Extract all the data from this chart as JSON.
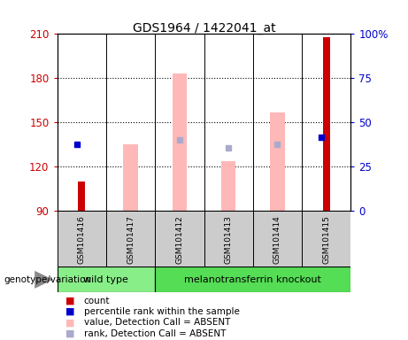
{
  "title": "GDS1964 / 1422041_at",
  "samples": [
    "GSM101416",
    "GSM101417",
    "GSM101412",
    "GSM101413",
    "GSM101414",
    "GSM101415"
  ],
  "ylim_left": [
    90,
    210
  ],
  "ylim_right": [
    0,
    100
  ],
  "yticks_left": [
    90,
    120,
    150,
    180,
    210
  ],
  "yticks_right": [
    0,
    25,
    50,
    75,
    100
  ],
  "ytick_labels_right": [
    "0",
    "25",
    "50",
    "75",
    "100%"
  ],
  "red_bars": {
    "GSM101416": 110,
    "GSM101415": 208
  },
  "blue_squares": {
    "GSM101416": 135,
    "GSM101415": 140
  },
  "pink_bars": {
    "GSM101417": 135,
    "GSM101412": 183,
    "GSM101413": 124,
    "GSM101414": 157
  },
  "lightblue_squares": {
    "GSM101412": 138,
    "GSM101413": 133,
    "GSM101414": 135
  },
  "wild_type": [
    "GSM101416",
    "GSM101417"
  ],
  "knockout": [
    "GSM101412",
    "GSM101413",
    "GSM101414",
    "GSM101415"
  ],
  "wild_type_label": "wild type",
  "knockout_label": "melanotransferrin knockout",
  "genotype_label": "genotype/variation",
  "legend_items": [
    {
      "label": "count",
      "color": "#cc0000"
    },
    {
      "label": "percentile rank within the sample",
      "color": "#0000cc"
    },
    {
      "label": "value, Detection Call = ABSENT",
      "color": "#ffb8b8"
    },
    {
      "label": "rank, Detection Call = ABSENT",
      "color": "#aaaacc"
    }
  ],
  "left_yaxis_color": "#cc0000",
  "right_yaxis_color": "#0000cc",
  "bar_bottom": 90,
  "pink_bar_color": "#ffb8b8",
  "red_bar_color": "#cc0000",
  "blue_sq_color": "#0000cc",
  "lightblue_sq_color": "#aaaacc",
  "gray_box_color": "#cccccc",
  "wt_color": "#88ee88",
  "ko_color": "#55dd55",
  "arrow_color": "#888888"
}
